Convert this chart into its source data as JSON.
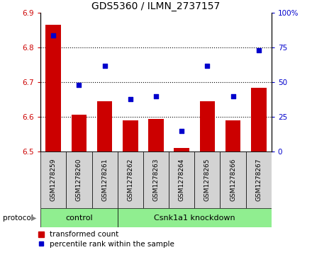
{
  "title": "GDS5360 / ILMN_2737157",
  "samples": [
    "GSM1278259",
    "GSM1278260",
    "GSM1278261",
    "GSM1278262",
    "GSM1278263",
    "GSM1278264",
    "GSM1278265",
    "GSM1278266",
    "GSM1278267"
  ],
  "transformed_counts": [
    6.865,
    6.607,
    6.645,
    6.59,
    6.595,
    6.51,
    6.645,
    6.59,
    6.685
  ],
  "percentile_ranks": [
    84,
    48,
    62,
    38,
    40,
    15,
    62,
    40,
    73
  ],
  "ylim_left": [
    6.5,
    6.9
  ],
  "ylim_right": [
    0,
    100
  ],
  "yticks_left": [
    6.5,
    6.6,
    6.7,
    6.8,
    6.9
  ],
  "yticks_right": [
    0,
    25,
    50,
    75,
    100
  ],
  "bar_color": "#cc0000",
  "dot_color": "#0000cc",
  "bar_bottom": 6.5,
  "protocol_groups": [
    {
      "label": "control",
      "start": 0,
      "end": 3,
      "color": "#90ee90"
    },
    {
      "label": "Csnk1a1 knockdown",
      "start": 3,
      "end": 9,
      "color": "#90ee90"
    }
  ],
  "protocol_label": "protocol",
  "legend_bar_label": "transformed count",
  "legend_dot_label": "percentile rank within the sample",
  "title_fontsize": 10,
  "axis_label_color_left": "#cc0000",
  "axis_label_color_right": "#0000cc",
  "grid_color": "#000000",
  "bg_color": "#ffffff",
  "tick_area_color": "#d3d3d3"
}
